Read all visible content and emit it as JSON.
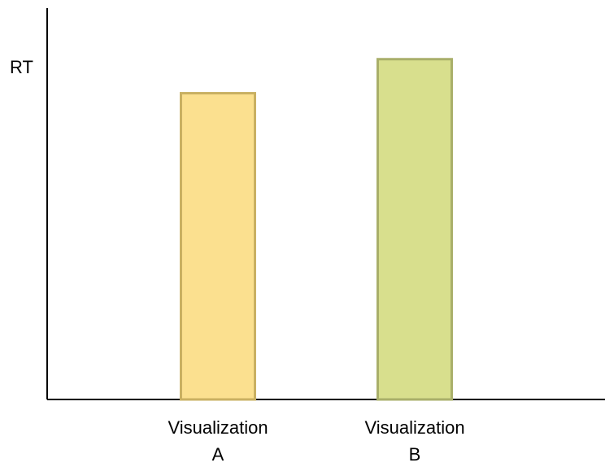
{
  "chart_data": {
    "type": "bar",
    "title": "",
    "xlabel": "",
    "ylabel": "RT",
    "categories": [
      {
        "line1": "Visualization",
        "line2": "A"
      },
      {
        "line1": "Visualization",
        "line2": "B"
      }
    ],
    "values": [
      90,
      100
    ],
    "ylim": [
      0,
      115
    ],
    "grid": false,
    "colors": [
      {
        "fill": "#fbe08f",
        "stroke": "#c9b062"
      },
      {
        "fill": "#d8df8d",
        "stroke": "#a9af6a"
      }
    ]
  }
}
